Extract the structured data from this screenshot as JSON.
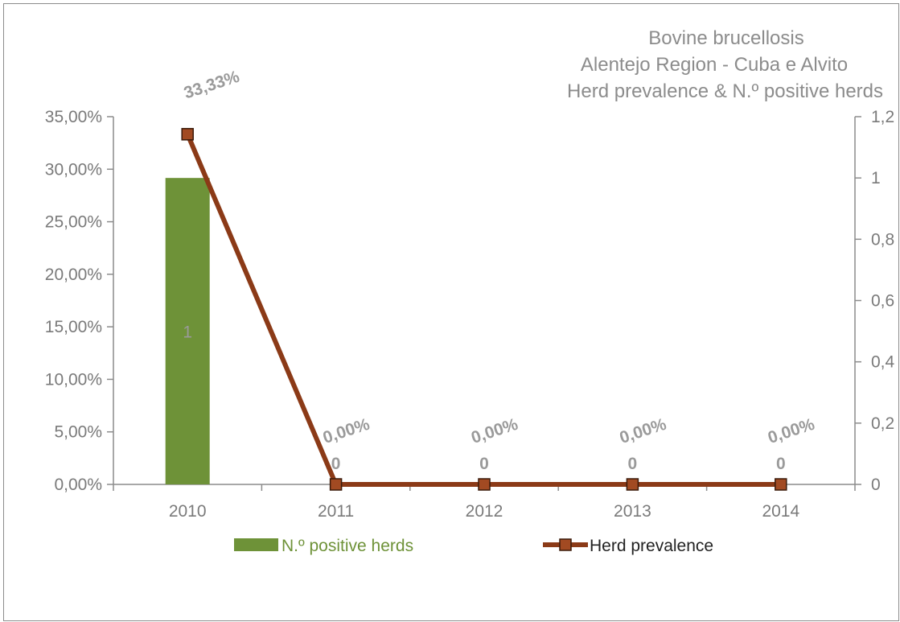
{
  "chart_data": {
    "type": "bar+line",
    "title": [
      "Bovine brucellosis",
      "Alentejo Region - Cuba e Alvito",
      "Herd prevalence & N.º positive herds"
    ],
    "categories": [
      "2010",
      "2011",
      "2012",
      "2013",
      "2014"
    ],
    "series": [
      {
        "name": "N.º positive herds",
        "type": "bar",
        "axis": "right",
        "values": [
          1,
          0,
          0,
          0,
          0
        ],
        "data_labels": [
          "1",
          "0",
          "0",
          "0",
          "0"
        ],
        "color": "#6e9238"
      },
      {
        "name": "Herd prevalence",
        "type": "line",
        "axis": "left",
        "values": [
          0.3333,
          0,
          0,
          0,
          0
        ],
        "data_labels": [
          "33,33%",
          "0,00%",
          "0,00%",
          "0,00%",
          "0,00%"
        ],
        "color": "#8b3a17",
        "marker": "square"
      }
    ],
    "left_axis": {
      "ylim": [
        0,
        0.35
      ],
      "ticks": [
        0,
        0.05,
        0.1,
        0.15,
        0.2,
        0.25,
        0.3,
        0.35
      ],
      "tick_labels": [
        "0,00%",
        "5,00%",
        "10,00%",
        "15,00%",
        "20,00%",
        "25,00%",
        "30,00%",
        "35,00%"
      ]
    },
    "right_axis": {
      "ylim": [
        0,
        1.2
      ],
      "ticks": [
        0,
        0.2,
        0.4,
        0.6,
        0.8,
        1,
        1.2
      ],
      "tick_labels": [
        "0",
        "0,2",
        "0,4",
        "0,6",
        "0,8",
        "1",
        "1,2"
      ]
    },
    "grid": false,
    "legend_position": "bottom"
  },
  "colors": {
    "bar": "#6e9238",
    "line": "#8b3a17",
    "marker_fill": "#a24a22",
    "axis": "#8c8c8c",
    "text": "#7a7a7a"
  }
}
